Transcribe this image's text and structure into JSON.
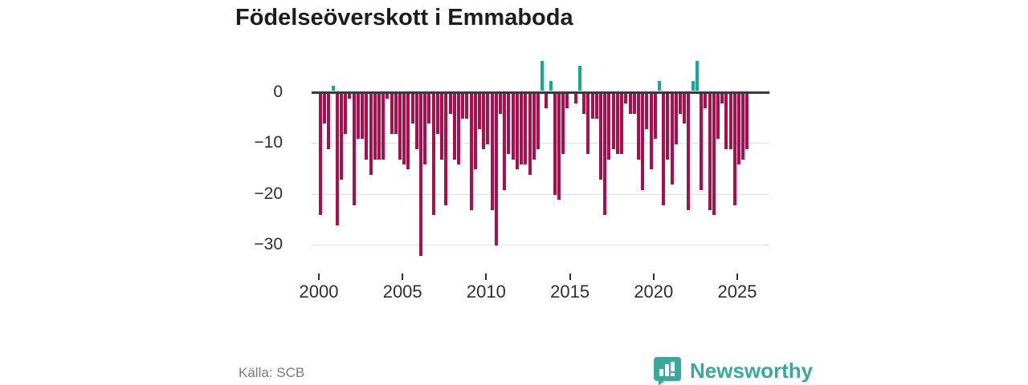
{
  "title": "Födelseöverskott i Emmaboda",
  "source": "Källa: SCB",
  "branding": {
    "name": "Newsworthy",
    "icon": "newsworthy-speech-bubble-bar-chart-icon"
  },
  "colors": {
    "negative_bar": "#a90e4f",
    "positive_bar": "#14a79b",
    "zero_axis": "#3a3a3a",
    "gridline": "#e0e0e0",
    "tick_text": "#2e2e2e",
    "source_text": "#7b7b7b",
    "brand_teal": "#3ba79e",
    "title_text": "#1d1d1d"
  },
  "chart_data": {
    "type": "bar",
    "title": "Födelseöverskott i Emmaboda",
    "frequency": "quarterly",
    "start": "2000-Q1",
    "end": "2025-Q3",
    "xlabel": "",
    "ylabel": "",
    "grid": "horizontal",
    "legend": "none",
    "ylim": [
      -33,
      7
    ],
    "y_tick_values": [
      0,
      -10,
      -20,
      -30
    ],
    "y_tick_labels": [
      "0",
      "−10",
      "−20",
      "−30"
    ],
    "x_tick_labels": [
      "2000",
      "2005",
      "2010",
      "2015",
      "2020",
      "2025"
    ],
    "values_note": "birth surplus per quarter; positive bars teal, negative bars crimson; 0 means no visible bar",
    "values": [
      -24,
      -6,
      -11,
      1,
      -26,
      -17,
      -8,
      -1,
      -22,
      -9,
      -9,
      -13,
      -16,
      -13,
      -13,
      -13,
      -1,
      -8,
      -8,
      -13,
      -14,
      -15,
      -6,
      -11,
      -32,
      -14,
      -6,
      -24,
      -8,
      -13,
      -22,
      -4,
      -13,
      -14,
      -5,
      -5,
      -23,
      -15,
      -7,
      -11,
      -10,
      -23,
      -30,
      -4,
      -19,
      -12,
      -13,
      -15,
      -14,
      -14,
      -16,
      -13,
      -11,
      6,
      -3,
      2,
      -20,
      -21,
      -12,
      -3,
      0,
      -2,
      5,
      -4,
      -12,
      -5,
      -5,
      -17,
      -24,
      -13,
      -11,
      -12,
      -12,
      -2,
      -4,
      -4,
      -13,
      -19,
      -7,
      -15,
      -9,
      2,
      -22,
      -13,
      -18,
      -10,
      -4,
      -6,
      -23,
      2,
      6,
      -19,
      -3,
      -23,
      -24,
      -9,
      -2,
      -11,
      -11,
      -22,
      -14,
      -13,
      -11
    ]
  }
}
